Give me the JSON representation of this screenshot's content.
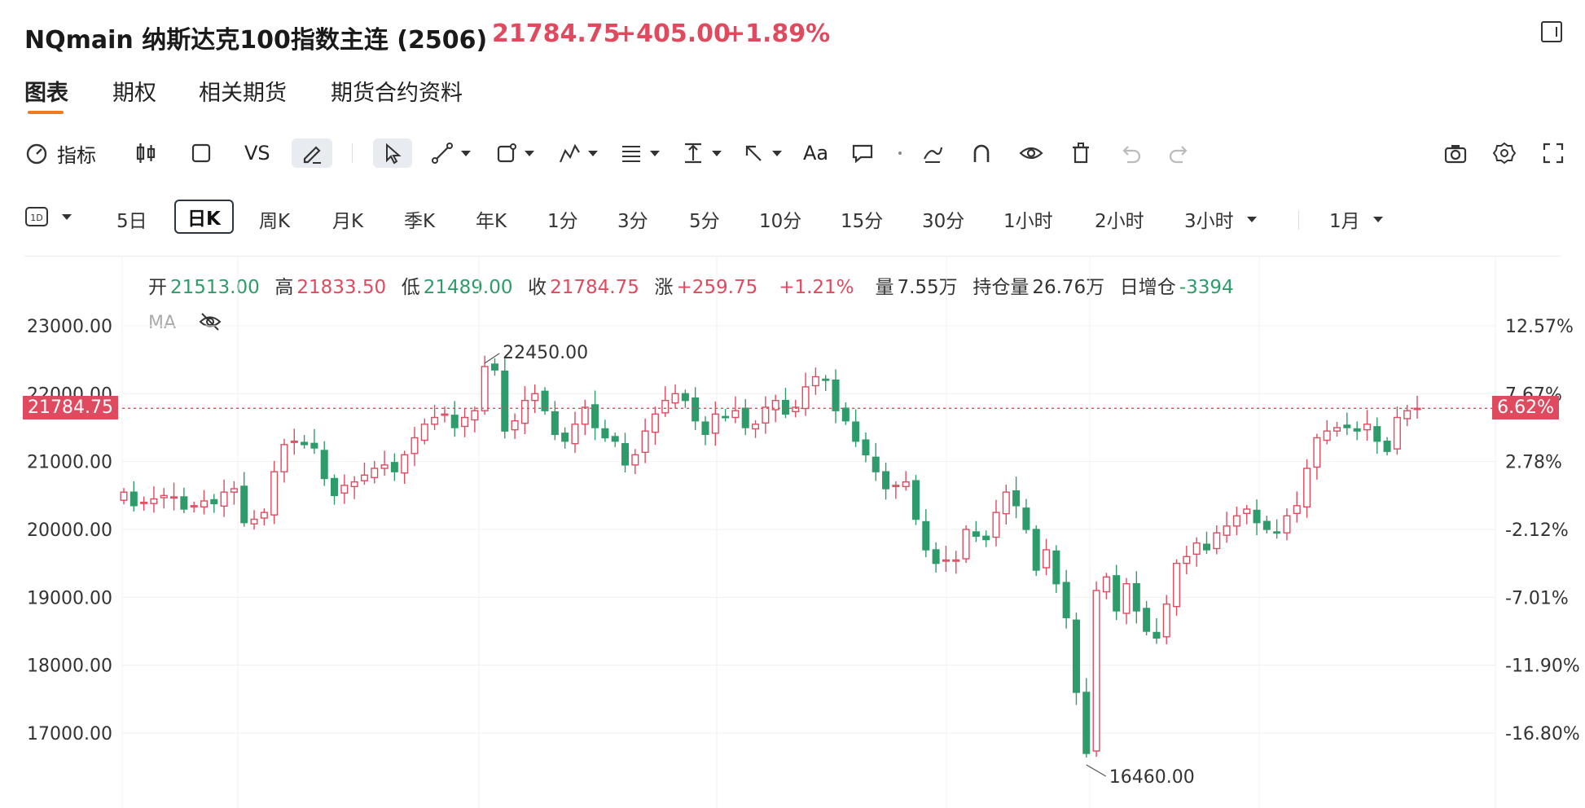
{
  "header": {
    "symbol_title": "NQmain 纳斯达克100指数主连 (2506)",
    "last": "21784.75",
    "change": "+405.00",
    "change_pct": "+1.89%"
  },
  "tabs": [
    {
      "label": "图表"
    },
    {
      "label": "期权"
    },
    {
      "label": "相关期货"
    },
    {
      "label": "期货合约资料"
    }
  ],
  "toolbar": {
    "indicator": "指标",
    "vs": "VS",
    "text": "Aa"
  },
  "periods": [
    {
      "label": "5日"
    },
    {
      "label": "日K"
    },
    {
      "label": "周K"
    },
    {
      "label": "月K"
    },
    {
      "label": "季K"
    },
    {
      "label": "年K"
    },
    {
      "label": "1分"
    },
    {
      "label": "3分"
    },
    {
      "label": "5分"
    },
    {
      "label": "10分"
    },
    {
      "label": "15分"
    },
    {
      "label": "30分"
    },
    {
      "label": "1小时"
    },
    {
      "label": "2小时"
    },
    {
      "label": "3小时"
    },
    {
      "label": "1月"
    }
  ],
  "ohlc": {
    "open_label": "开",
    "open": "21513.00",
    "high_label": "高",
    "high": "21833.50",
    "low_label": "低",
    "low": "21489.00",
    "close_label": "收",
    "close": "21784.75",
    "chg_label": "涨",
    "chg": "+259.75",
    "chg_pct": "+1.21%",
    "vol_label": "量",
    "vol": "7.55万",
    "oi_label": "持仓量",
    "oi": "26.76万",
    "oi_chg_label": "日增仓",
    "oi_chg": "-3394"
  },
  "ma_label": "MA",
  "colors": {
    "up": "#e04a5f",
    "down": "#2e9c6a",
    "accent": "#f07a1e"
  },
  "chart_data": {
    "type": "candlestick",
    "y_ticks": [
      "23000.00",
      "22000.00",
      "21000.00",
      "20000.00",
      "19000.00",
      "18000.00",
      "17000.00"
    ],
    "pct_ticks": [
      "12.57%",
      "7.67%",
      "2.78%",
      "-2.12%",
      "-7.01%",
      "-11.90%",
      "-16.80%"
    ],
    "ylim": [
      16500,
      23300
    ],
    "current_price": "21784.75",
    "current_pct": "6.62%",
    "high_annotation": "22450.00",
    "low_annotation": "16460.00",
    "closes": [
      20550,
      20350,
      20400,
      20450,
      20500,
      20480,
      20300,
      20350,
      20420,
      20380,
      20550,
      20600,
      20100,
      20150,
      20250,
      20850,
      21250,
      21300,
      21250,
      21200,
      20750,
      20500,
      20650,
      20700,
      20800,
      20900,
      20950,
      20850,
      21100,
      21350,
      21550,
      21650,
      21700,
      21500,
      21650,
      21750,
      22400,
      22350,
      21450,
      21600,
      21900,
      22000,
      21750,
      21400,
      21300,
      21550,
      21800,
      21500,
      21350,
      21300,
      20950,
      21100,
      21450,
      21700,
      21900,
      22000,
      21900,
      21600,
      21400,
      21700,
      21650,
      21750,
      21500,
      21550,
      21800,
      21900,
      21700,
      21800,
      22100,
      22250,
      22200,
      21750,
      21600,
      21300,
      21100,
      20850,
      20600,
      20650,
      20700,
      20150,
      19700,
      19500,
      19550,
      19550,
      20000,
      19900,
      19850,
      20250,
      20550,
      20350,
      20000,
      19400,
      19700,
      19200,
      18700,
      17600,
      16700,
      19100,
      19300,
      18800,
      19200,
      18800,
      18500,
      18400,
      18900,
      19500,
      19600,
      19800,
      19700,
      19950,
      20050,
      20200,
      20300,
      20100,
      20000,
      19950,
      20200,
      20350,
      20900,
      21350,
      21450,
      21500,
      21500,
      21450,
      21550,
      21300,
      21150,
      21650,
      21750,
      21785
    ]
  }
}
